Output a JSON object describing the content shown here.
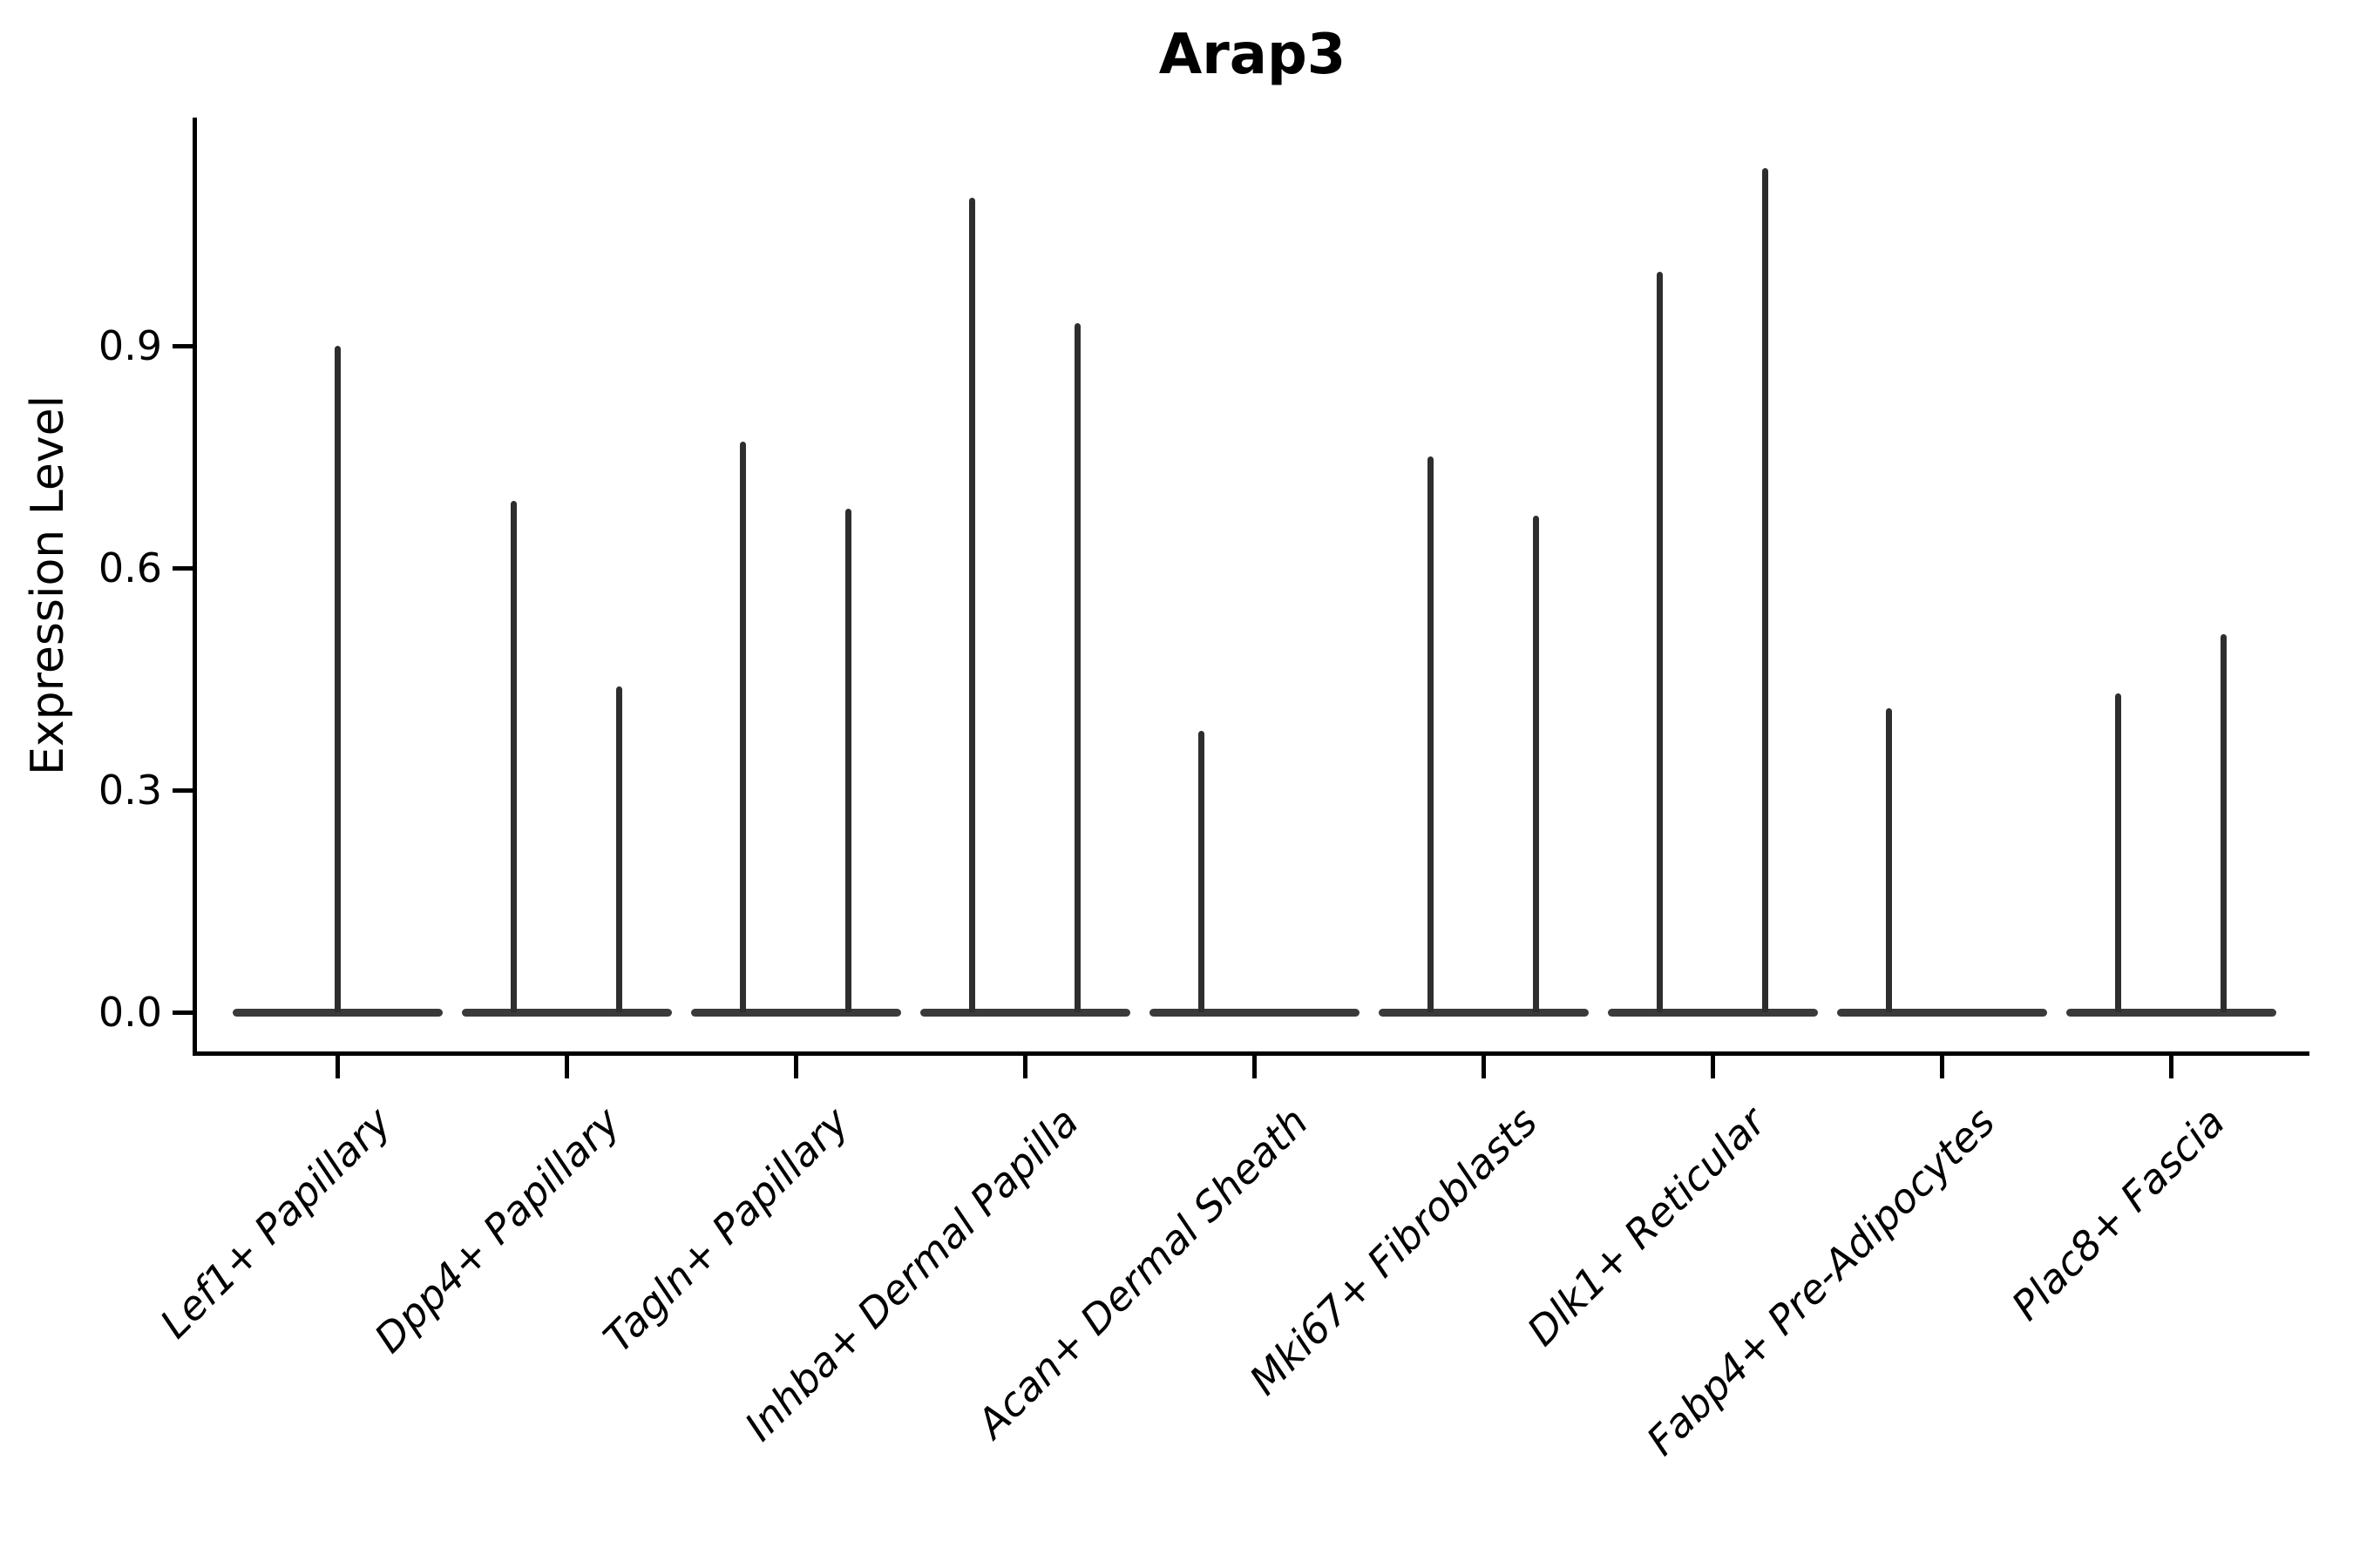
{
  "title": "Arap3",
  "colors": {
    "ink": "#000000",
    "violin_fill": "#3a3a3a",
    "spike_fill": "#2e2e2e",
    "background": "#ffffff"
  },
  "chart_data": {
    "type": "violin",
    "title": "Arap3",
    "xlabel": "",
    "ylabel": "Expression Level",
    "grid": false,
    "legend": null,
    "ylim": [
      -0.055,
      1.21
    ],
    "yticks": [
      {
        "label": "0.0",
        "value": 0.0
      },
      {
        "label": "0.3",
        "value": 0.3
      },
      {
        "label": "0.6",
        "value": 0.6
      },
      {
        "label": "0.9",
        "value": 0.9
      }
    ],
    "categories": [
      "Lef1+ Papillary",
      "Dpp4+ Papillary",
      "Tagln+ Papillary",
      "Inhba+ Dermal Papilla",
      "Acan+ Dermal Sheath",
      "Mki67+ Fibroblasts",
      "Dlk1+ Reticular",
      "Fabp4+ Pre-Adipocytes",
      "Plac8+ Fascia"
    ],
    "violins": [
      {
        "category": "Lef1+ Papillary",
        "baseline_value": 0.0,
        "spikes": [
          {
            "pos": 0.0,
            "max": 0.9
          }
        ]
      },
      {
        "category": "Dpp4+ Papillary",
        "baseline_value": 0.0,
        "spikes": [
          {
            "pos": -0.25,
            "max": 0.69
          },
          {
            "pos": 0.25,
            "max": 0.44
          }
        ]
      },
      {
        "category": "Tagln+ Papillary",
        "baseline_value": 0.0,
        "spikes": [
          {
            "pos": -0.25,
            "max": 0.77
          },
          {
            "pos": 0.25,
            "max": 0.68
          }
        ]
      },
      {
        "category": "Inhba+ Dermal Papilla",
        "baseline_value": 0.0,
        "spikes": [
          {
            "pos": -0.25,
            "max": 1.1
          },
          {
            "pos": 0.25,
            "max": 0.93
          }
        ]
      },
      {
        "category": "Acan+ Dermal Sheath",
        "baseline_value": 0.0,
        "spikes": [
          {
            "pos": -0.25,
            "max": 0.38
          }
        ]
      },
      {
        "category": "Mki67+ Fibroblasts",
        "baseline_value": 0.0,
        "spikes": [
          {
            "pos": -0.25,
            "max": 0.75
          },
          {
            "pos": 0.25,
            "max": 0.67
          }
        ]
      },
      {
        "category": "Dlk1+ Reticular",
        "baseline_value": 0.0,
        "spikes": [
          {
            "pos": -0.25,
            "max": 1.0
          },
          {
            "pos": 0.25,
            "max": 1.14
          }
        ]
      },
      {
        "category": "Fabp4+ Pre-Adipocytes",
        "baseline_value": 0.0,
        "spikes": [
          {
            "pos": -0.25,
            "max": 0.41
          }
        ]
      },
      {
        "category": "Plac8+ Fascia",
        "baseline_value": 0.0,
        "spikes": [
          {
            "pos": -0.25,
            "max": 0.43
          },
          {
            "pos": 0.25,
            "max": 0.51
          }
        ]
      }
    ]
  }
}
